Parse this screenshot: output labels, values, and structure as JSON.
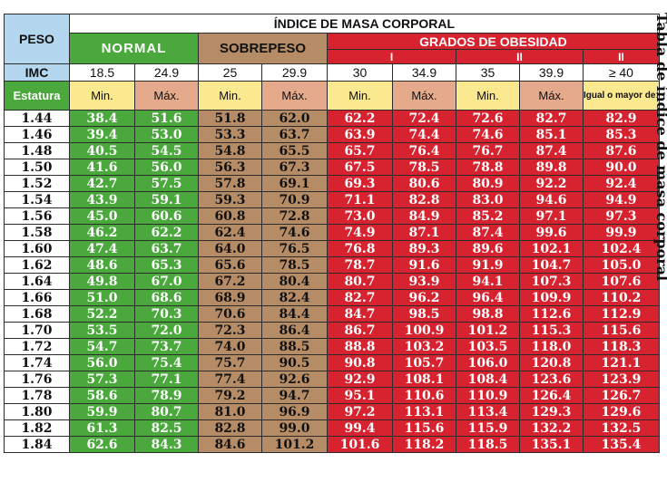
{
  "table": {
    "peso_label": "PESO",
    "title": "ÍNDICE DE MASA CORPORAL",
    "normal_label": "NORMAL",
    "sobrepeso_label": "SOBREPESO",
    "obesidad_label": "GRADOS DE OBESIDAD",
    "degrees": [
      "I",
      "II",
      "II"
    ],
    "imc_label": "IMC",
    "imc_values": [
      "18.5",
      "24.9",
      "25",
      "29.9",
      "30",
      "34.9",
      "35",
      "39.9",
      "≥ 40"
    ],
    "estatura_label": "Estatura",
    "min_label": "Min.",
    "max_label": "Máx.",
    "igual_label": "Igual o mayor de:",
    "rows": [
      [
        "1.44",
        "38.4",
        "51.6",
        "51.8",
        "62.0",
        "62.2",
        "72.4",
        "72.6",
        "82.7",
        "82.9"
      ],
      [
        "1.46",
        "39.4",
        "53.0",
        "53.3",
        "63.7",
        "63.9",
        "74.4",
        "74.6",
        "85.1",
        "85.3"
      ],
      [
        "1.48",
        "40.5",
        "54.5",
        "54.8",
        "65.5",
        "65.7",
        "76.4",
        "76.7",
        "87.4",
        "87.6"
      ],
      [
        "1.50",
        "41.6",
        "56.0",
        "56.3",
        "67.3",
        "67.5",
        "78.5",
        "78.8",
        "89.8",
        "90.0"
      ],
      [
        "1.52",
        "42.7",
        "57.5",
        "57.8",
        "69.1",
        "69.3",
        "80.6",
        "80.9",
        "92.2",
        "92.4"
      ],
      [
        "1.54",
        "43.9",
        "59.1",
        "59.3",
        "70.9",
        "71.1",
        "82.8",
        "83.0",
        "94.6",
        "94.9"
      ],
      [
        "1.56",
        "45.0",
        "60.6",
        "60.8",
        "72.8",
        "73.0",
        "84.9",
        "85.2",
        "97.1",
        "97.3"
      ],
      [
        "1.58",
        "46.2",
        "62.2",
        "62.4",
        "74.6",
        "74.9",
        "87.1",
        "87.4",
        "99.6",
        "99.9"
      ],
      [
        "1.60",
        "47.4",
        "63.7",
        "64.0",
        "76.5",
        "76.8",
        "89.3",
        "89.6",
        "102.1",
        "102.4"
      ],
      [
        "1.62",
        "48.6",
        "65.3",
        "65.6",
        "78.5",
        "78.7",
        "91.6",
        "91.9",
        "104.7",
        "105.0"
      ],
      [
        "1.64",
        "49.8",
        "67.0",
        "67.2",
        "80.4",
        "80.7",
        "93.9",
        "94.1",
        "107.3",
        "107.6"
      ],
      [
        "1.66",
        "51.0",
        "68.6",
        "68.9",
        "82.4",
        "82.7",
        "96.2",
        "96.4",
        "109.9",
        "110.2"
      ],
      [
        "1.68",
        "52.2",
        "70.3",
        "70.6",
        "84.4",
        "84.7",
        "98.5",
        "98.8",
        "112.6",
        "112.9"
      ],
      [
        "1.70",
        "53.5",
        "72.0",
        "72.3",
        "86.4",
        "86.7",
        "100.9",
        "101.2",
        "115.3",
        "115.6"
      ],
      [
        "1.72",
        "54.7",
        "73.7",
        "74.0",
        "88.5",
        "88.8",
        "103.2",
        "103.5",
        "118.0",
        "118.3"
      ],
      [
        "1.74",
        "56.0",
        "75.4",
        "75.7",
        "90.5",
        "90.8",
        "105.7",
        "106.0",
        "120.8",
        "121.1"
      ],
      [
        "1.76",
        "57.3",
        "77.1",
        "77.4",
        "92.6",
        "92.9",
        "108.1",
        "108.4",
        "123.6",
        "123.9"
      ],
      [
        "1.78",
        "58.6",
        "78.9",
        "79.2",
        "94.7",
        "95.1",
        "110.6",
        "110.9",
        "126.4",
        "126.7"
      ],
      [
        "1.80",
        "59.9",
        "80.7",
        "81.0",
        "96.9",
        "97.2",
        "113.1",
        "113.4",
        "129.3",
        "129.6"
      ],
      [
        "1.82",
        "61.3",
        "82.5",
        "82.8",
        "99.0",
        "99.4",
        "115.6",
        "115.9",
        "132.2",
        "132.5"
      ],
      [
        "1.84",
        "62.6",
        "84.3",
        "84.6",
        "101.2",
        "101.6",
        "118.2",
        "118.5",
        "135.1",
        "135.4"
      ]
    ]
  },
  "side_title": "Tabla de índice de masa corporal"
}
